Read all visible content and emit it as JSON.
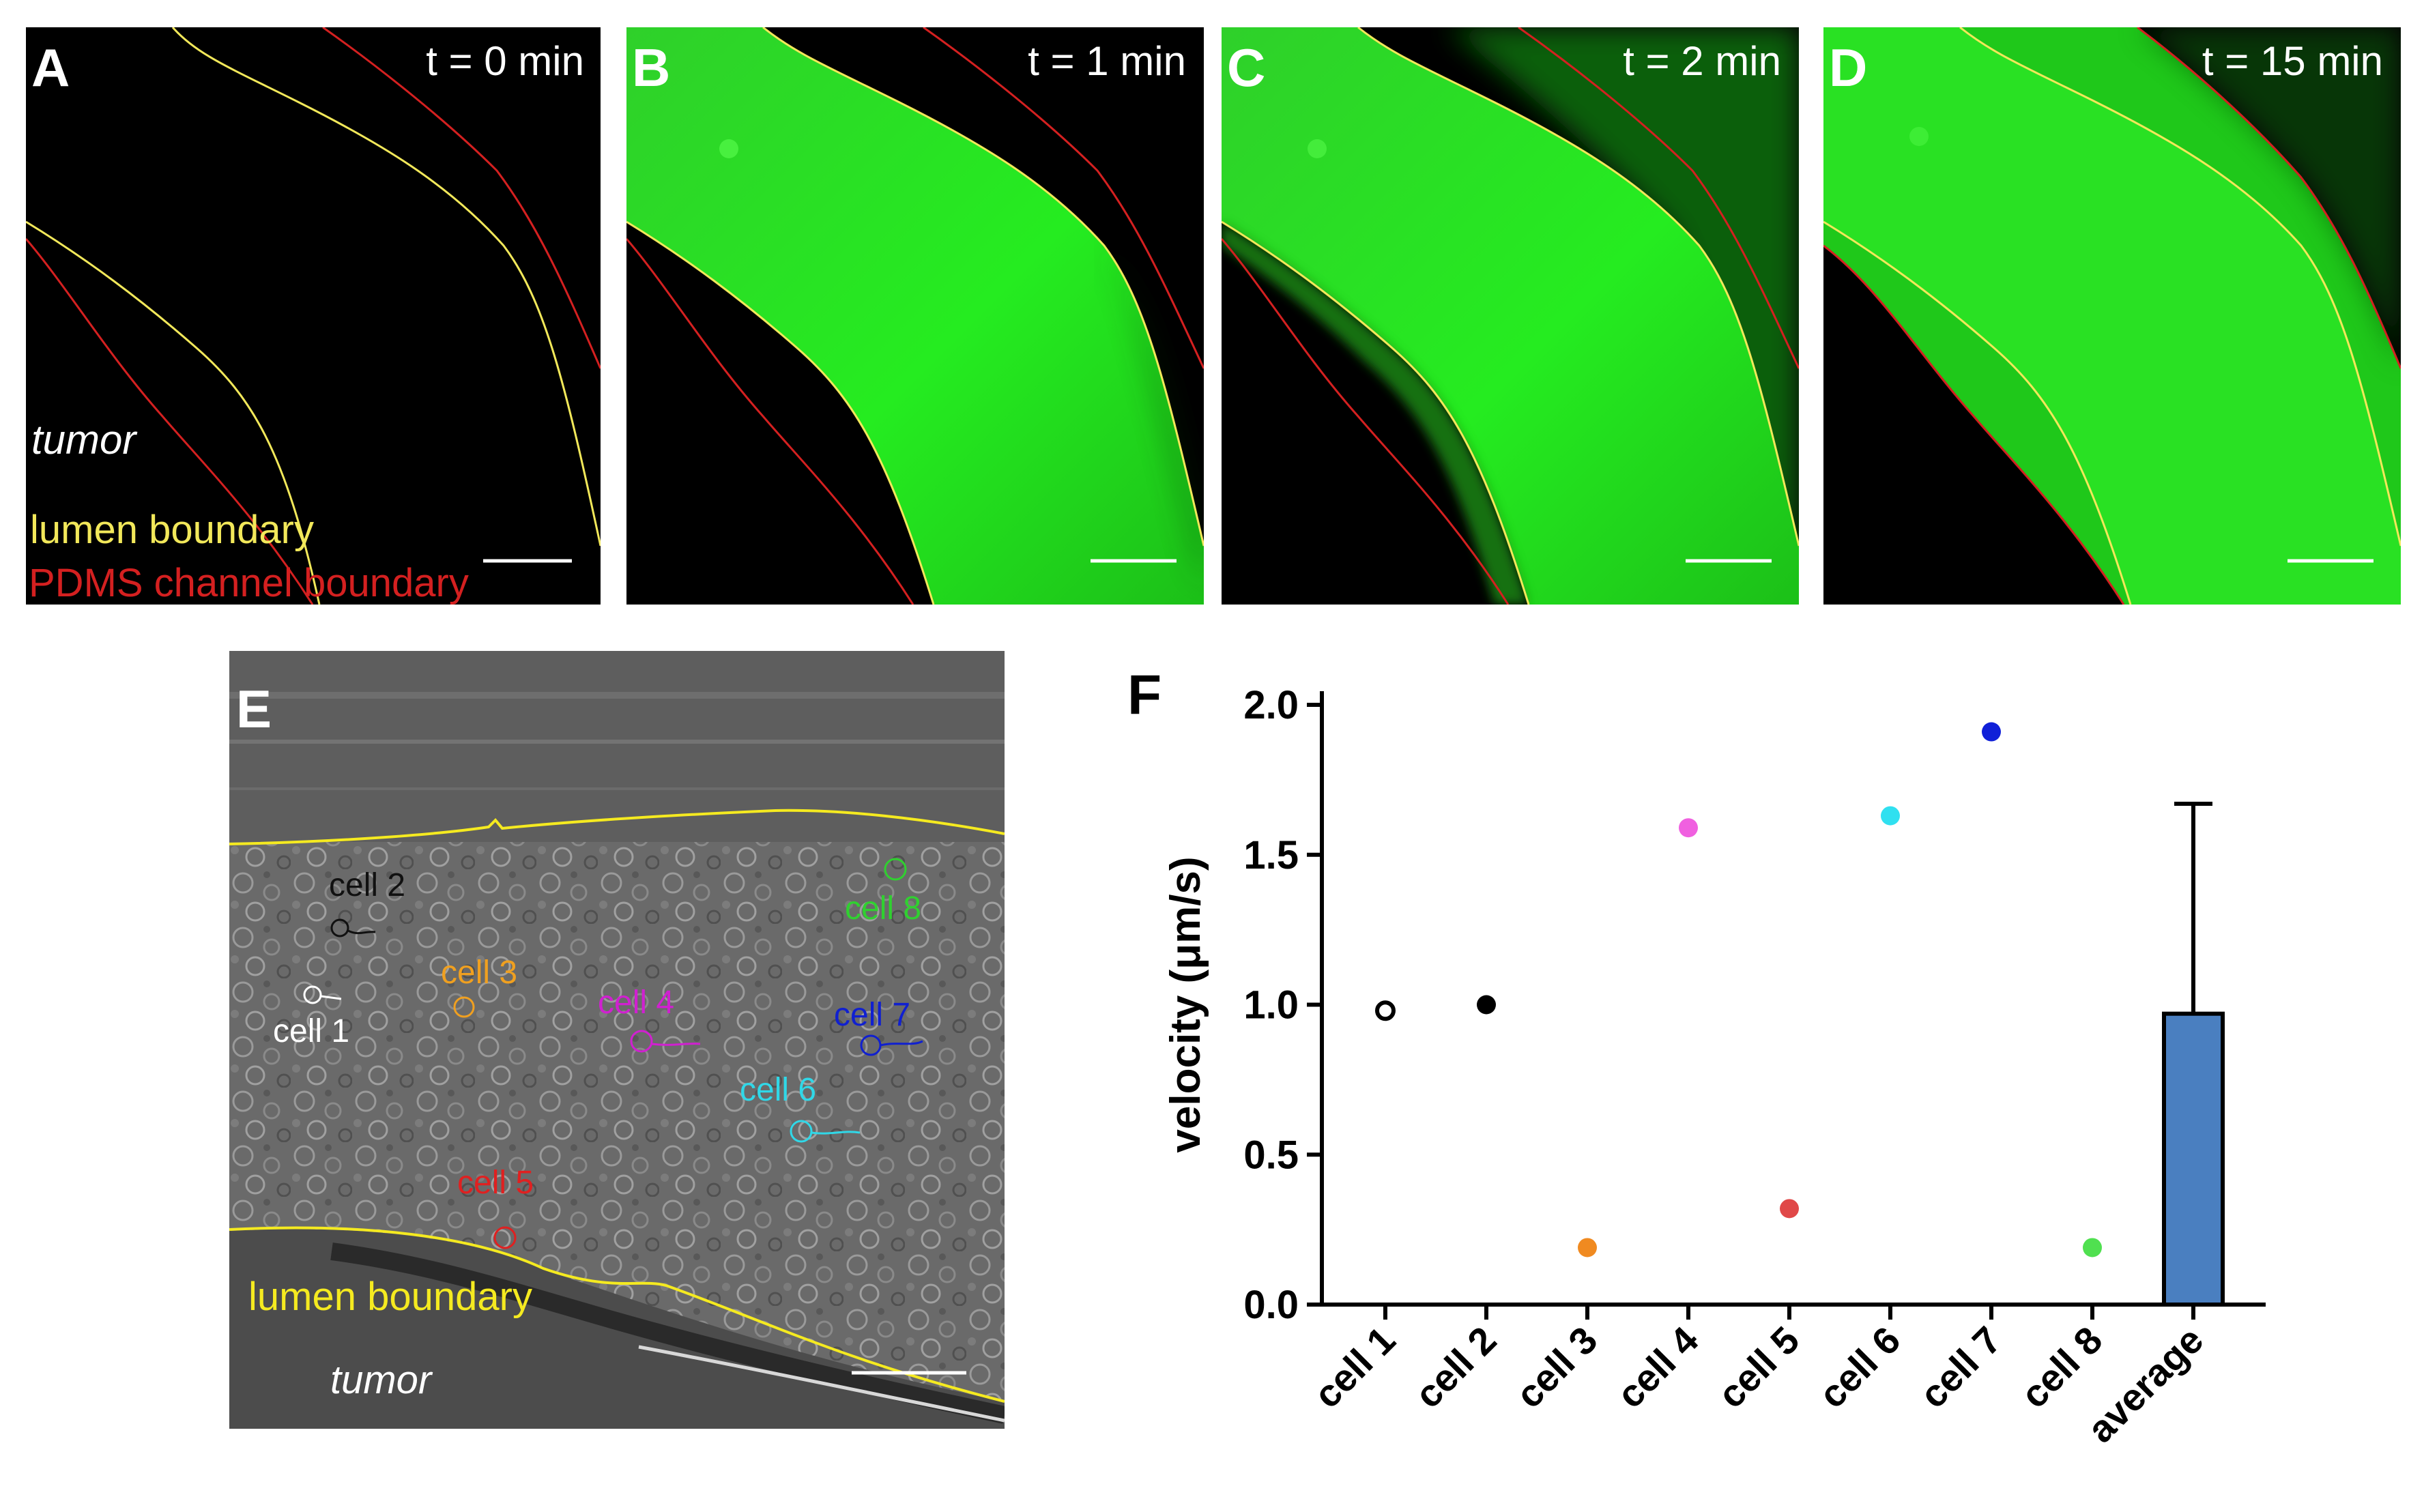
{
  "panels": {
    "A": {
      "letter": "A",
      "time": "t = 0 min",
      "tumor": "tumor",
      "lumen": "lumen boundary",
      "pdms": "PDMS channel boundary"
    },
    "B": {
      "letter": "B",
      "time": "t = 1 min"
    },
    "C": {
      "letter": "C",
      "time": "t = 2 min"
    },
    "D": {
      "letter": "D",
      "time": "t = 15 min"
    },
    "E": {
      "letter": "E",
      "lumen": "lumen boundary",
      "tumor": "tumor",
      "cells": [
        "cell 1",
        "cell 2",
        "cell 3",
        "cell 4",
        "cell 5",
        "cell 6",
        "cell 7",
        "cell 8"
      ]
    },
    "F": {
      "letter": "F"
    }
  },
  "colors": {
    "lumen": "#f2e85a",
    "pdms": "#d42020",
    "green": "#22e01e",
    "cell1": "#ffffff",
    "cell2": "#111111",
    "cell3": "#f0a020",
    "cell4": "#d020d0",
    "cell5": "#e02020",
    "cell6": "#30d8e8",
    "cell7": "#1020d0",
    "cell8": "#30d030",
    "bar": "#4a7fc0"
  },
  "chart_data": {
    "type": "scatter",
    "title": "",
    "ylabel": "velocity (μm/s)",
    "xlabel": "",
    "ylim": [
      0,
      2.0
    ],
    "yticks": [
      "0.0",
      "0.5",
      "1.0",
      "1.5",
      "2.0"
    ],
    "categories": [
      "cell 1",
      "cell 2",
      "cell 3",
      "cell 4",
      "cell 5",
      "cell 6",
      "cell 7",
      "cell 8",
      "average"
    ],
    "points": [
      {
        "name": "cell 1",
        "value": 0.98,
        "color": "#000000",
        "hollow": true
      },
      {
        "name": "cell 2",
        "value": 1.0,
        "color": "#000000",
        "hollow": false
      },
      {
        "name": "cell 3",
        "value": 0.19,
        "color": "#f08a20",
        "hollow": false
      },
      {
        "name": "cell 4",
        "value": 1.59,
        "color": "#f060e0",
        "hollow": false
      },
      {
        "name": "cell 5",
        "value": 0.32,
        "color": "#e04848",
        "hollow": false
      },
      {
        "name": "cell 6",
        "value": 1.63,
        "color": "#30e0f0",
        "hollow": false
      },
      {
        "name": "cell 7",
        "value": 1.91,
        "color": "#1020d8",
        "hollow": false
      },
      {
        "name": "cell 8",
        "value": 0.19,
        "color": "#50e050",
        "hollow": false
      }
    ],
    "bar": {
      "name": "average",
      "value": 0.97,
      "error": 0.7,
      "color": "#4a7fc0"
    }
  }
}
